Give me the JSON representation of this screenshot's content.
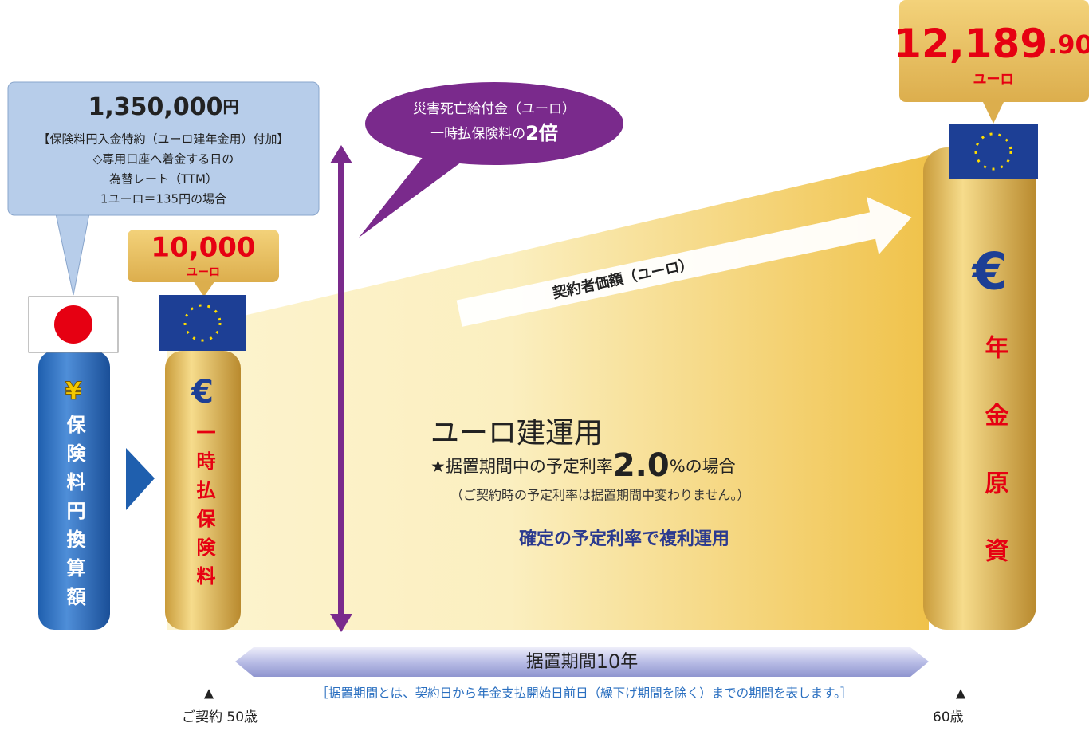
{
  "callout": {
    "amount": "1,350,000",
    "unit": "円",
    "lines": [
      "【保険料円入金特約（ユーロ建年金用）付加】",
      "◇専用口座へ着金する日の",
      "為替レート（TTM）",
      "1ユーロ＝135円の場合"
    ]
  },
  "bubble": {
    "line1": "災害死亡給付金（ユーロ）",
    "line2": "一時払保険料の",
    "multiple": "2倍"
  },
  "start_amount": {
    "value": "10,000",
    "unit": "ユーロ"
  },
  "end_amount": {
    "integer": "12,189",
    "decimal": ".90",
    "unit": "ユーロ"
  },
  "icons": {
    "yen": "¥",
    "euro": "€"
  },
  "columns": [
    "保険料円換算額",
    "一時払保険料",
    "年金原資"
  ],
  "growth_arrow": "契約者価額（ユーロ）",
  "plan": {
    "title": "ユーロ建運用",
    "rate_prefix": "★据置期間中の予定利率",
    "rate": "2.0",
    "rate_suffix": "%の場合",
    "note": "（ご契約時の予定利率は据置期間中変わりません。）",
    "method": "確定の予定利率で複利運用"
  },
  "period": {
    "label": "据置期間",
    "years": "10",
    "unit": "年",
    "marker": "▲",
    "note": "［据置期間とは、契約日から年金支払開始日前日（繰下げ期間を除く）までの期間を表します。］",
    "start": "ご契約 50歳",
    "end": "60歳"
  }
}
